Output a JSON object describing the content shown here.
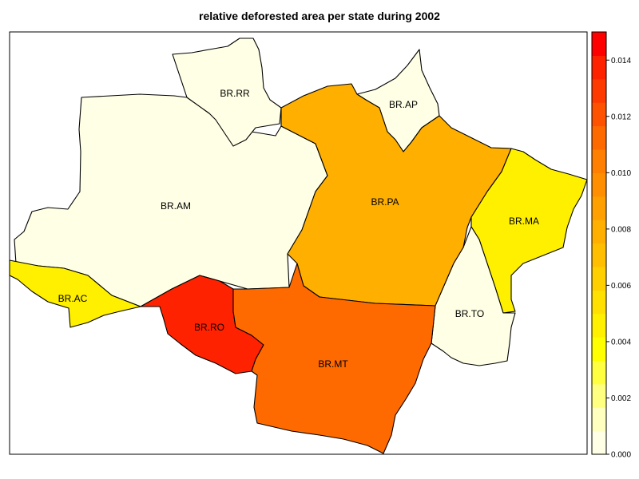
{
  "title": "relative deforested area per state during 2002",
  "states": [
    {
      "id": "AM",
      "label": "BR.AM",
      "value": 0.0003
    },
    {
      "id": "RR",
      "label": "BR.RR",
      "value": 0.0004
    },
    {
      "id": "AP",
      "label": "BR.AP",
      "value": 0.0002
    },
    {
      "id": "PA",
      "label": "BR.PA",
      "value": 0.0075
    },
    {
      "id": "MA",
      "label": "BR.MA",
      "value": 0.0045
    },
    {
      "id": "TO",
      "label": "BR.TO",
      "value": 0.0004
    },
    {
      "id": "AC",
      "label": "BR.AC",
      "value": 0.0048
    },
    {
      "id": "RO",
      "label": "BR.RO",
      "value": 0.0135
    },
    {
      "id": "MT",
      "label": "BR.MT",
      "value": 0.0115
    }
  ],
  "legend": {
    "min": 0.0,
    "max": 0.015,
    "ticks": [
      "0.000",
      "0.002",
      "0.004",
      "0.006",
      "0.008",
      "0.010",
      "0.012",
      "0.014"
    ],
    "colors": [
      "#FFFFE6",
      "#FFFFBF",
      "#FFFF80",
      "#FFFF40",
      "#FFFF00",
      "#FFF000",
      "#FFE000",
      "#FFCF00",
      "#FFBF00",
      "#FFAF00",
      "#FF9F00",
      "#FF8F00",
      "#FF7F00",
      "#FF6A00",
      "#FF5200",
      "#FF3A00",
      "#FF2200",
      "#FF0000"
    ]
  }
}
